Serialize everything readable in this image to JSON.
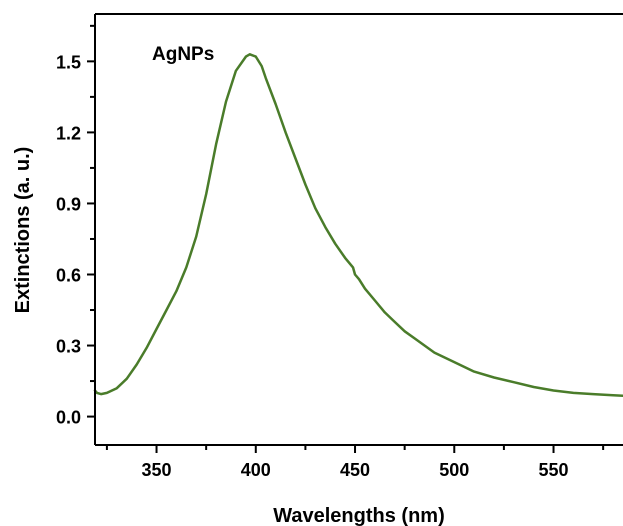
{
  "chart_data": {
    "type": "line",
    "title": "",
    "xlabel": "Wavelengths (nm)",
    "ylabel": "Extinctions (a. u.)",
    "xlim": [
      319,
      585
    ],
    "ylim": [
      -0.12,
      1.7
    ],
    "x_ticks": [
      350,
      400,
      450,
      500,
      550
    ],
    "x_tick_labels": [
      "350",
      "400",
      "450",
      "500",
      "550"
    ],
    "y_ticks": [
      0.0,
      0.3,
      0.6,
      0.9,
      1.2,
      1.5
    ],
    "y_tick_labels": [
      "0.0",
      "0.3",
      "0.6",
      "0.9",
      "1.2",
      "1.5"
    ],
    "grid": false,
    "annotations": [
      {
        "text": "AgNPs",
        "x": 382,
        "y": 1.53
      }
    ],
    "color": "#4a7c2a",
    "series": [
      {
        "x": [
          319,
          320,
          322,
          325,
          330,
          335,
          340,
          345,
          350,
          355,
          360,
          365,
          370,
          375,
          380,
          385,
          390,
          395,
          397,
          400,
          403,
          405,
          410,
          415,
          420,
          425,
          430,
          435,
          440,
          445,
          449,
          450,
          452,
          455,
          460,
          465,
          470,
          475,
          480,
          490,
          500,
          510,
          520,
          530,
          540,
          550,
          560,
          570,
          580,
          585
        ],
        "y": [
          0.11,
          0.1,
          0.095,
          0.1,
          0.12,
          0.16,
          0.22,
          0.29,
          0.37,
          0.45,
          0.53,
          0.63,
          0.76,
          0.94,
          1.15,
          1.33,
          1.46,
          1.52,
          1.53,
          1.52,
          1.48,
          1.43,
          1.32,
          1.2,
          1.09,
          0.98,
          0.88,
          0.8,
          0.73,
          0.67,
          0.63,
          0.6,
          0.58,
          0.54,
          0.49,
          0.44,
          0.4,
          0.36,
          0.33,
          0.27,
          0.23,
          0.19,
          0.165,
          0.145,
          0.125,
          0.11,
          0.1,
          0.095,
          0.09,
          0.088
        ]
      }
    ]
  }
}
